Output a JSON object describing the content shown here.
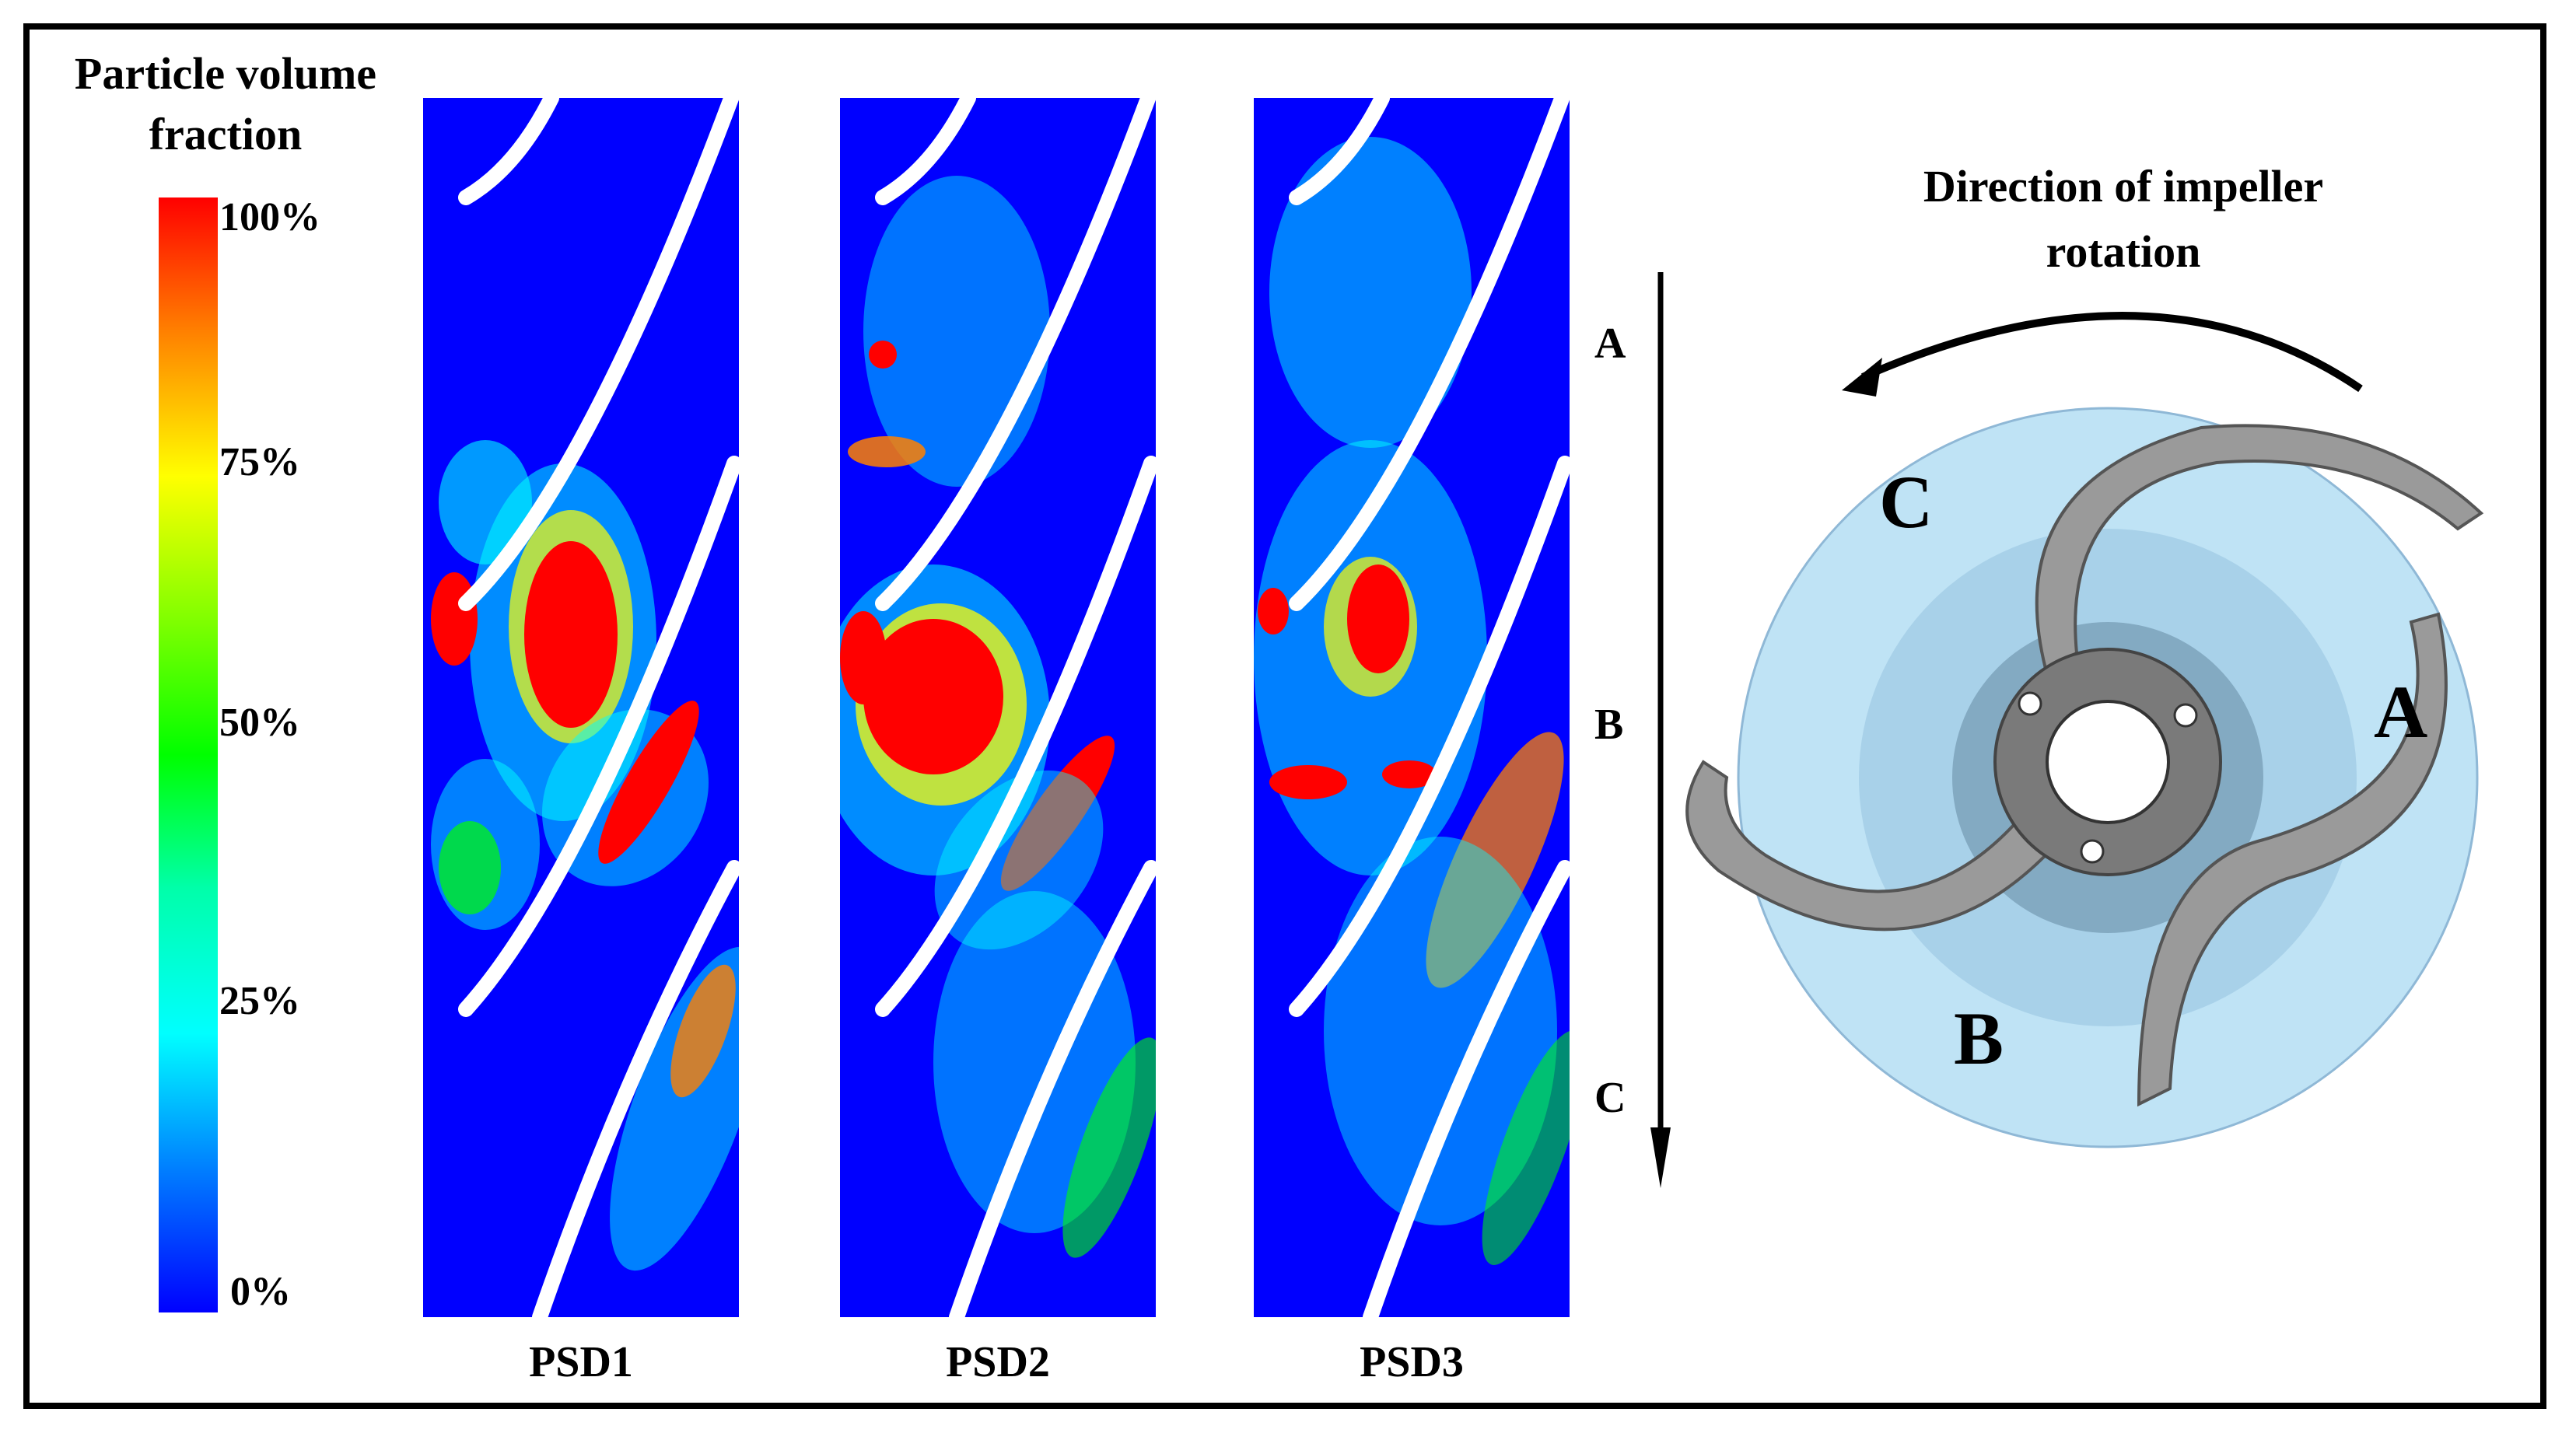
{
  "legend": {
    "title_line1": "Particle volume",
    "title_line2": "fraction",
    "ticks": [
      "100%",
      "75%",
      "50%",
      "25%",
      "0%"
    ]
  },
  "panels": [
    {
      "label": "PSD1"
    },
    {
      "label": "PSD2"
    },
    {
      "label": "PSD3"
    }
  ],
  "flow_axis": {
    "positions": [
      "A",
      "B",
      "C"
    ]
  },
  "impeller": {
    "title_line1": "Direction of impeller",
    "title_line2": "rotation",
    "labels": {
      "a": "A",
      "b": "B",
      "c": "C"
    }
  },
  "colors": {
    "low": "#0000ff",
    "cyan": "#00ffff",
    "green": "#00ff00",
    "yellow": "#ffff00",
    "high": "#ff0000",
    "volute": "#bfe3f5",
    "hub": "#8fb8d6",
    "blade": "#9a9a9a"
  }
}
